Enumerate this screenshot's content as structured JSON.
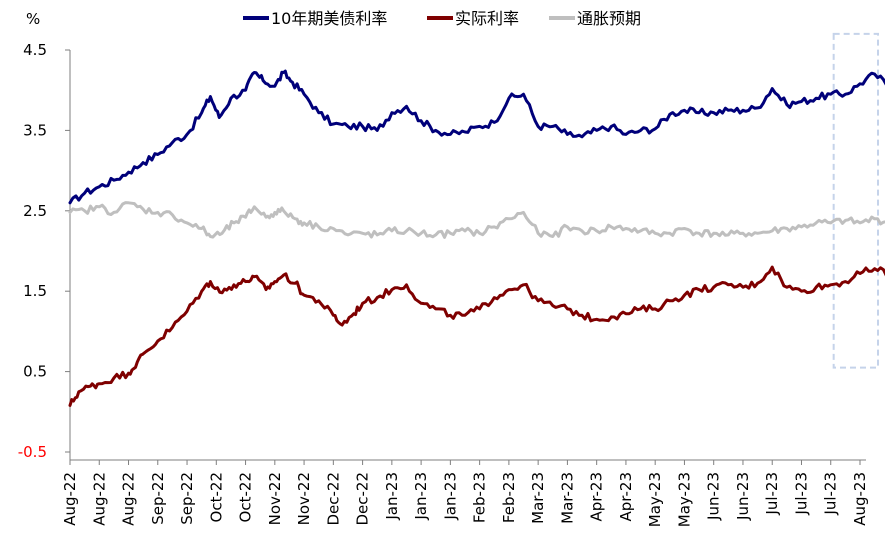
{
  "chart_data": {
    "type": "line",
    "unit_label": "%",
    "ylim": [
      -0.5,
      4.5
    ],
    "yticks": [
      {
        "value": 4.5,
        "label": "4.5"
      },
      {
        "value": 3.5,
        "label": "3.5"
      },
      {
        "value": 2.5,
        "label": "2.5"
      },
      {
        "value": 1.5,
        "label": "1.5"
      },
      {
        "value": 0.5,
        "label": "0.5"
      },
      {
        "value": -0.5,
        "label": "-0.5"
      }
    ],
    "xticks": [
      "Aug-22",
      "Aug-22",
      "Aug-22",
      "Sep-22",
      "Sep-22",
      "Oct-22",
      "Oct-22",
      "Nov-22",
      "Nov-22",
      "Dec-22",
      "Dec-22",
      "Jan-23",
      "Jan-23",
      "Jan-23",
      "Feb-23",
      "Feb-23",
      "Mar-23",
      "Mar-23",
      "Apr-23",
      "Apr-23",
      "May-23",
      "May-23",
      "Jun-23",
      "Jun-23",
      "Jul-23",
      "Jul-23",
      "Jul-23",
      "Aug-23"
    ],
    "grid": false,
    "legend_position": "top",
    "highlight_box": {
      "x_start": 26.1,
      "x_end": 28.5,
      "y_top": 4.7,
      "y_bottom": 0.55,
      "style": "dashed",
      "color": "#c5d3ea"
    },
    "series": [
      {
        "name": "10年期美债利率",
        "color": "#00007a",
        "points": [
          [
            0,
            2.6
          ],
          [
            0.5,
            2.72
          ],
          [
            1,
            2.8
          ],
          [
            1.5,
            2.88
          ],
          [
            2,
            2.98
          ],
          [
            2.5,
            3.1
          ],
          [
            3,
            3.2
          ],
          [
            3.5,
            3.35
          ],
          [
            4,
            3.45
          ],
          [
            4.5,
            3.72
          ],
          [
            4.8,
            3.92
          ],
          [
            5.1,
            3.66
          ],
          [
            5.5,
            3.9
          ],
          [
            6,
            4.0
          ],
          [
            6.3,
            4.22
          ],
          [
            6.6,
            4.12
          ],
          [
            7,
            4.05
          ],
          [
            7.3,
            4.22
          ],
          [
            7.6,
            4.1
          ],
          [
            8,
            3.95
          ],
          [
            8.5,
            3.72
          ],
          [
            9,
            3.58
          ],
          [
            9.5,
            3.55
          ],
          [
            10,
            3.55
          ],
          [
            10.5,
            3.5
          ],
          [
            11,
            3.72
          ],
          [
            11.5,
            3.8
          ],
          [
            12,
            3.62
          ],
          [
            12.5,
            3.5
          ],
          [
            13,
            3.45
          ],
          [
            13.5,
            3.48
          ],
          [
            14,
            3.55
          ],
          [
            14.5,
            3.6
          ],
          [
            15,
            3.9
          ],
          [
            15.5,
            3.95
          ],
          [
            16,
            3.55
          ],
          [
            16.5,
            3.55
          ],
          [
            17,
            3.45
          ],
          [
            17.5,
            3.42
          ],
          [
            18,
            3.5
          ],
          [
            18.5,
            3.55
          ],
          [
            19,
            3.45
          ],
          [
            19.5,
            3.5
          ],
          [
            20,
            3.52
          ],
          [
            20.5,
            3.7
          ],
          [
            21,
            3.75
          ],
          [
            21.5,
            3.72
          ],
          [
            22,
            3.72
          ],
          [
            22.5,
            3.75
          ],
          [
            23,
            3.75
          ],
          [
            23.5,
            3.78
          ],
          [
            24,
            4.02
          ],
          [
            24.5,
            3.82
          ],
          [
            25,
            3.86
          ],
          [
            25.5,
            3.9
          ],
          [
            26,
            3.95
          ],
          [
            26.5,
            3.95
          ],
          [
            27,
            4.08
          ],
          [
            27.5,
            4.2
          ],
          [
            28,
            4.05
          ],
          [
            28.5,
            4.28
          ]
        ]
      },
      {
        "name": "实际利率",
        "color": "#7f0000",
        "points": [
          [
            0,
            0.08
          ],
          [
            0.3,
            0.25
          ],
          [
            0.7,
            0.32
          ],
          [
            1,
            0.35
          ],
          [
            1.5,
            0.42
          ],
          [
            2,
            0.48
          ],
          [
            2.3,
            0.62
          ],
          [
            2.6,
            0.75
          ],
          [
            3,
            0.88
          ],
          [
            3.5,
            1.05
          ],
          [
            4,
            1.25
          ],
          [
            4.5,
            1.5
          ],
          [
            4.8,
            1.62
          ],
          [
            5.2,
            1.48
          ],
          [
            5.6,
            1.58
          ],
          [
            6,
            1.62
          ],
          [
            6.3,
            1.68
          ],
          [
            6.7,
            1.52
          ],
          [
            7,
            1.62
          ],
          [
            7.3,
            1.7
          ],
          [
            7.7,
            1.6
          ],
          [
            8,
            1.45
          ],
          [
            8.5,
            1.38
          ],
          [
            9,
            1.2
          ],
          [
            9.3,
            1.08
          ],
          [
            9.7,
            1.22
          ],
          [
            10,
            1.35
          ],
          [
            10.5,
            1.42
          ],
          [
            11,
            1.52
          ],
          [
            11.5,
            1.58
          ],
          [
            12,
            1.35
          ],
          [
            12.5,
            1.28
          ],
          [
            13,
            1.2
          ],
          [
            13.5,
            1.2
          ],
          [
            14,
            1.28
          ],
          [
            14.5,
            1.42
          ],
          [
            15,
            1.52
          ],
          [
            15.5,
            1.58
          ],
          [
            16,
            1.38
          ],
          [
            16.5,
            1.32
          ],
          [
            17,
            1.28
          ],
          [
            17.5,
            1.2
          ],
          [
            18,
            1.15
          ],
          [
            18.5,
            1.18
          ],
          [
            19,
            1.22
          ],
          [
            19.5,
            1.28
          ],
          [
            20,
            1.28
          ],
          [
            20.5,
            1.38
          ],
          [
            21,
            1.45
          ],
          [
            21.5,
            1.52
          ],
          [
            22,
            1.55
          ],
          [
            22.5,
            1.58
          ],
          [
            23,
            1.55
          ],
          [
            23.5,
            1.6
          ],
          [
            24,
            1.8
          ],
          [
            24.5,
            1.55
          ],
          [
            25,
            1.5
          ],
          [
            25.5,
            1.55
          ],
          [
            26,
            1.58
          ],
          [
            26.5,
            1.62
          ],
          [
            27,
            1.72
          ],
          [
            27.5,
            1.78
          ],
          [
            28,
            1.72
          ],
          [
            28.5,
            1.92
          ]
        ]
      },
      {
        "name": "通胀预期",
        "color": "#bfbfbf",
        "points": [
          [
            0,
            2.48
          ],
          [
            0.5,
            2.5
          ],
          [
            1,
            2.55
          ],
          [
            1.5,
            2.48
          ],
          [
            2,
            2.6
          ],
          [
            2.5,
            2.52
          ],
          [
            3,
            2.48
          ],
          [
            3.5,
            2.45
          ],
          [
            4,
            2.35
          ],
          [
            4.5,
            2.28
          ],
          [
            4.8,
            2.18
          ],
          [
            5.2,
            2.22
          ],
          [
            5.6,
            2.35
          ],
          [
            6,
            2.42
          ],
          [
            6.3,
            2.55
          ],
          [
            6.7,
            2.42
          ],
          [
            7,
            2.48
          ],
          [
            7.3,
            2.5
          ],
          [
            7.7,
            2.4
          ],
          [
            8,
            2.35
          ],
          [
            8.5,
            2.3
          ],
          [
            9,
            2.28
          ],
          [
            9.5,
            2.2
          ],
          [
            10,
            2.22
          ],
          [
            10.5,
            2.2
          ],
          [
            11,
            2.25
          ],
          [
            11.5,
            2.25
          ],
          [
            12,
            2.22
          ],
          [
            12.5,
            2.2
          ],
          [
            13,
            2.22
          ],
          [
            13.5,
            2.25
          ],
          [
            14,
            2.22
          ],
          [
            14.5,
            2.3
          ],
          [
            15,
            2.4
          ],
          [
            15.5,
            2.48
          ],
          [
            16,
            2.22
          ],
          [
            16.5,
            2.18
          ],
          [
            17,
            2.3
          ],
          [
            17.5,
            2.25
          ],
          [
            18,
            2.25
          ],
          [
            18.5,
            2.3
          ],
          [
            19,
            2.28
          ],
          [
            19.5,
            2.25
          ],
          [
            20,
            2.22
          ],
          [
            20.5,
            2.22
          ],
          [
            21,
            2.28
          ],
          [
            21.5,
            2.22
          ],
          [
            22,
            2.22
          ],
          [
            22.5,
            2.2
          ],
          [
            23,
            2.22
          ],
          [
            23.5,
            2.22
          ],
          [
            24,
            2.25
          ],
          [
            24.5,
            2.28
          ],
          [
            25,
            2.3
          ],
          [
            25.5,
            2.35
          ],
          [
            26,
            2.35
          ],
          [
            26.5,
            2.38
          ],
          [
            27,
            2.35
          ],
          [
            27.5,
            2.4
          ],
          [
            28,
            2.35
          ],
          [
            28.5,
            2.3
          ]
        ]
      }
    ]
  }
}
